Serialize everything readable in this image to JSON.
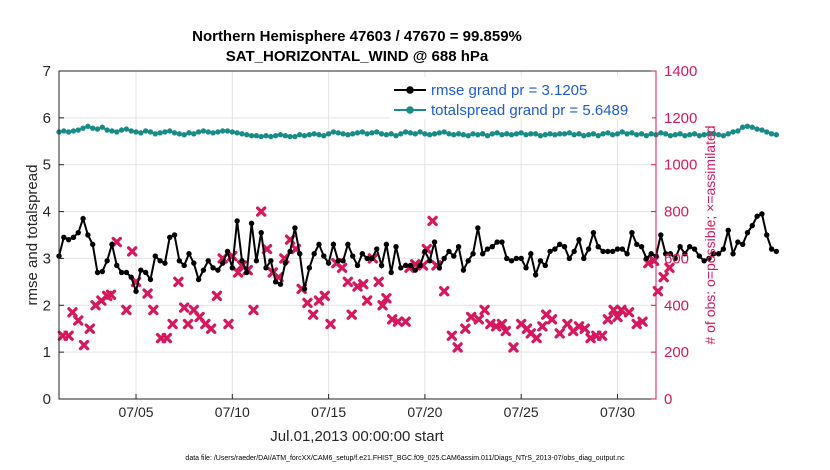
{
  "chart_data": {
    "type": "line",
    "title": "Northern Hemisphere 47603 / 47670 = 99.859%",
    "subtitle": "SAT_HORIZONTAL_WIND @ 688 hPa",
    "xlabel": "Jul.01,2013 00:00:00 start",
    "ylabel_left": "rmse and totalspread",
    "ylabel_right": "# of obs: o=possible; ×=assimilated",
    "footer": "data file: /Users/raeder/DAI/ATM_forcXX/CAM6_setup/f.e21.FHIST_BGC.f09_025.CAM6assim.011/Diags_NTrS_2013-07/obs_diag_output.nc",
    "xlim": [
      1,
      32
    ],
    "ylim_left": [
      0,
      7
    ],
    "ylim_right": [
      0,
      1400
    ],
    "x_ticks": [
      5,
      10,
      15,
      20,
      25,
      30
    ],
    "x_tick_labels": [
      "07/05",
      "07/10",
      "07/15",
      "07/20",
      "07/25",
      "07/30"
    ],
    "y_ticks_left": [
      0,
      1,
      2,
      3,
      4,
      5,
      6,
      7
    ],
    "y_ticks_right": [
      0,
      200,
      400,
      600,
      800,
      1000,
      1200,
      1400
    ],
    "legend_position": "top-right",
    "grid": true,
    "colors": {
      "rmse": "#000000",
      "spread": "#1a8c87",
      "obs": "#d6185f"
    },
    "series": [
      {
        "name": "rmse grand pr = 3.1205",
        "axis": "left",
        "start": 1.0,
        "step": 0.25,
        "values": [
          3.05,
          3.45,
          3.4,
          3.45,
          3.55,
          3.85,
          3.5,
          3.3,
          2.7,
          2.72,
          2.95,
          3.3,
          2.85,
          2.7,
          2.7,
          2.6,
          2.3,
          2.75,
          2.7,
          2.55,
          3.05,
          2.95,
          2.9,
          3.45,
          3.5,
          2.95,
          2.85,
          3.1,
          2.9,
          2.55,
          2.75,
          2.95,
          2.8,
          2.75,
          2.9,
          3.15,
          2.8,
          3.8,
          2.95,
          2.7,
          3.75,
          2.95,
          3.55,
          2.8,
          2.95,
          2.5,
          2.45,
          2.9,
          3.15,
          3.65,
          3.1,
          2.35,
          2.8,
          3.1,
          3.3,
          3.05,
          2.9,
          3.3,
          2.95,
          2.95,
          3.3,
          3.05,
          2.85,
          3.1,
          3.0,
          3.0,
          3.2,
          2.85,
          3.3,
          2.7,
          3.25,
          2.8,
          2.85,
          2.85,
          2.75,
          2.85,
          3.15,
          2.95,
          3.35,
          2.8,
          3.0,
          3.15,
          3.05,
          3.25,
          2.75,
          2.95,
          3.1,
          3.65,
          3.1,
          3.2,
          3.25,
          3.35,
          3.35,
          3.0,
          2.95,
          3.0,
          3.0,
          2.8,
          3.1,
          2.65,
          2.95,
          2.85,
          3.15,
          3.2,
          3.3,
          3.25,
          3.0,
          3.15,
          3.4,
          3.0,
          3.2,
          3.55,
          3.25,
          3.15,
          3.15,
          3.15,
          3.2,
          3.2,
          3.1,
          3.55,
          3.3,
          3.25,
          3.0,
          3.1,
          3.05,
          3.5,
          3.1,
          3.1,
          3.0,
          3.25,
          3.1,
          3.25,
          3.2,
          3.05,
          2.95,
          3.0,
          3.1,
          3.1,
          3.2,
          3.6,
          3.1,
          3.35,
          3.3,
          3.55,
          3.7,
          3.9,
          3.95,
          3.5,
          3.2,
          3.15
        ]
      },
      {
        "name": "totalspread grand pr = 5.6489",
        "axis": "left",
        "start": 1.0,
        "step": 0.25,
        "values": [
          5.7,
          5.72,
          5.7,
          5.72,
          5.74,
          5.78,
          5.82,
          5.78,
          5.76,
          5.8,
          5.74,
          5.72,
          5.7,
          5.74,
          5.76,
          5.72,
          5.7,
          5.68,
          5.72,
          5.7,
          5.66,
          5.68,
          5.7,
          5.72,
          5.68,
          5.66,
          5.64,
          5.68,
          5.66,
          5.7,
          5.72,
          5.7,
          5.68,
          5.7,
          5.72,
          5.72,
          5.7,
          5.68,
          5.66,
          5.64,
          5.62,
          5.62,
          5.6,
          5.62,
          5.6,
          5.62,
          5.64,
          5.62,
          5.6,
          5.6,
          5.64,
          5.62,
          5.64,
          5.66,
          5.64,
          5.62,
          5.66,
          5.7,
          5.68,
          5.66,
          5.64,
          5.66,
          5.68,
          5.7,
          5.66,
          5.68,
          5.7,
          5.66,
          5.64,
          5.66,
          5.62,
          5.66,
          5.7,
          5.68,
          5.66,
          5.7,
          5.66,
          5.64,
          5.66,
          5.68,
          5.7,
          5.66,
          5.64,
          5.66,
          5.64,
          5.62,
          5.66,
          5.64,
          5.66,
          5.62,
          5.66,
          5.68,
          5.64,
          5.66,
          5.64,
          5.66,
          5.68,
          5.64,
          5.66,
          5.66,
          5.62,
          5.64,
          5.66,
          5.64,
          5.66,
          5.66,
          5.68,
          5.64,
          5.66,
          5.62,
          5.64,
          5.66,
          5.62,
          5.66,
          5.68,
          5.64,
          5.66,
          5.7,
          5.66,
          5.68,
          5.64,
          5.66,
          5.62,
          5.66,
          5.64,
          5.68,
          5.66,
          5.62,
          5.64,
          5.66,
          5.62,
          5.64,
          5.66,
          5.62,
          5.64,
          5.66,
          5.66,
          5.64,
          5.62,
          5.66,
          5.7,
          5.72,
          5.8,
          5.82,
          5.8,
          5.76,
          5.74,
          5.7,
          5.66,
          5.64
        ]
      }
    ],
    "obs_points": {
      "name": "# obs assimilated",
      "axis": "right",
      "points": [
        [
          1.2,
          270
        ],
        [
          1.5,
          270
        ],
        [
          1.7,
          370
        ],
        [
          2.0,
          335
        ],
        [
          2.3,
          230
        ],
        [
          2.6,
          300
        ],
        [
          2.9,
          400
        ],
        [
          3.2,
          420
        ],
        [
          3.5,
          440
        ],
        [
          3.7,
          445
        ],
        [
          4.0,
          670
        ],
        [
          4.5,
          380
        ],
        [
          4.8,
          630
        ],
        [
          5.0,
          500
        ],
        [
          5.6,
          450
        ],
        [
          5.9,
          380
        ],
        [
          6.3,
          260
        ],
        [
          6.6,
          260
        ],
        [
          6.9,
          320
        ],
        [
          7.2,
          500
        ],
        [
          7.5,
          390
        ],
        [
          7.7,
          320
        ],
        [
          8.0,
          380
        ],
        [
          8.3,
          350
        ],
        [
          8.6,
          320
        ],
        [
          8.9,
          300
        ],
        [
          9.2,
          440
        ],
        [
          9.5,
          600
        ],
        [
          9.8,
          320
        ],
        [
          10.0,
          610
        ],
        [
          10.3,
          540
        ],
        [
          10.5,
          570
        ],
        [
          10.8,
          550
        ],
        [
          11.1,
          380
        ],
        [
          11.5,
          800
        ],
        [
          11.8,
          640
        ],
        [
          12.1,
          540
        ],
        [
          12.4,
          520
        ],
        [
          12.7,
          600
        ],
        [
          13.0,
          680
        ],
        [
          13.3,
          640
        ],
        [
          13.6,
          470
        ],
        [
          13.9,
          410
        ],
        [
          14.2,
          360
        ],
        [
          14.5,
          420
        ],
        [
          14.8,
          440
        ],
        [
          15.1,
          320
        ],
        [
          15.4,
          580
        ],
        [
          15.7,
          560
        ],
        [
          16.0,
          500
        ],
        [
          16.2,
          360
        ],
        [
          16.5,
          480
        ],
        [
          16.8,
          490
        ],
        [
          17.0,
          420
        ],
        [
          17.3,
          600
        ],
        [
          17.6,
          500
        ],
        [
          17.8,
          400
        ],
        [
          18.0,
          430
        ],
        [
          18.3,
          340
        ],
        [
          18.6,
          330
        ],
        [
          19.0,
          330
        ],
        [
          19.2,
          560
        ],
        [
          19.5,
          575
        ],
        [
          19.9,
          570
        ],
        [
          20.1,
          640
        ],
        [
          20.4,
          760
        ],
        [
          20.6,
          570
        ],
        [
          21.0,
          460
        ],
        [
          21.4,
          270
        ],
        [
          21.7,
          220
        ],
        [
          22.1,
          300
        ],
        [
          22.4,
          350
        ],
        [
          22.8,
          340
        ],
        [
          23.1,
          380
        ],
        [
          23.4,
          320
        ],
        [
          23.7,
          310
        ],
        [
          24.0,
          320
        ],
        [
          24.2,
          290
        ],
        [
          24.6,
          220
        ],
        [
          25.0,
          320
        ],
        [
          25.3,
          300
        ],
        [
          25.5,
          280
        ],
        [
          25.8,
          260
        ],
        [
          26.1,
          310
        ],
        [
          26.3,
          360
        ],
        [
          26.6,
          340
        ],
        [
          27.0,
          280
        ],
        [
          27.4,
          320
        ],
        [
          27.7,
          290
        ],
        [
          28.0,
          310
        ],
        [
          28.3,
          300
        ],
        [
          28.6,
          260
        ],
        [
          28.9,
          270
        ],
        [
          29.2,
          270
        ],
        [
          29.5,
          340
        ],
        [
          29.8,
          380
        ],
        [
          30.0,
          350
        ],
        [
          30.2,
          380
        ],
        [
          30.6,
          370
        ],
        [
          31.0,
          320
        ],
        [
          31.3,
          330
        ],
        [
          31.6,
          580
        ],
        [
          31.9,
          590
        ],
        [
          32.1,
          460
        ],
        [
          32.4,
          520
        ],
        [
          32.7,
          560
        ]
      ]
    }
  }
}
